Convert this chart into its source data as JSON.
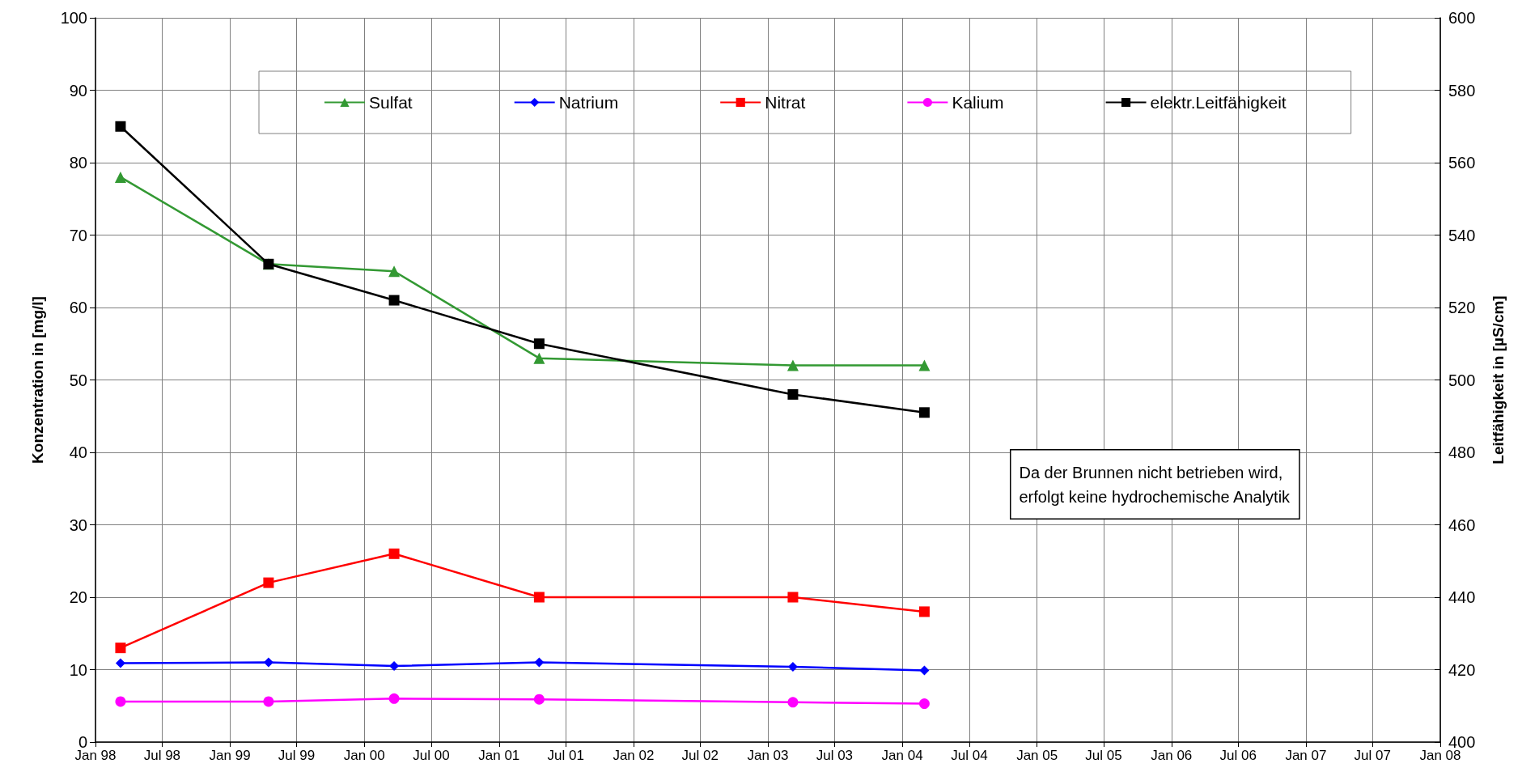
{
  "chart_data": {
    "type": "line",
    "ylabel": "Konzentration in [mg/l]",
    "y2label": "Leitfähigkeit in [µS/cm]",
    "x": [
      "1998-03-10",
      "1999-04-16",
      "2000-03-22",
      "2001-04-20",
      "2003-03-10",
      "2004-03-01"
    ],
    "series": [
      {
        "name": "Sulfat",
        "color": "#339933",
        "marker": "triangle",
        "values": [
          78,
          66,
          65,
          53,
          52,
          52
        ]
      },
      {
        "name": "Natrium",
        "color": "#0000ff",
        "marker": "diamond",
        "values": [
          10.9,
          11,
          10.5,
          11,
          10.4,
          9.9
        ]
      },
      {
        "name": "Nitrat",
        "color": "#ff0000",
        "marker": "square",
        "values": [
          13,
          22,
          26,
          20,
          20,
          18
        ]
      },
      {
        "name": "Kalium",
        "color": "#ff00ff",
        "marker": "circle",
        "values": [
          5.6,
          5.6,
          6,
          5.9,
          5.5,
          5.3
        ]
      },
      {
        "name": "elektr.Leitfähigkeit",
        "color": "#000000",
        "marker": "square",
        "axis": "y2",
        "values": [
          570,
          532,
          522,
          510,
          496,
          491
        ]
      }
    ],
    "xlim": [
      "1998-01",
      "2008-01"
    ],
    "xticks": [
      {
        "value": "1998-01",
        "label": "Jan 98"
      },
      {
        "value": "1998-07",
        "label": "Jul 98"
      },
      {
        "value": "1999-01",
        "label": "Jan 99"
      },
      {
        "value": "1999-07",
        "label": "Jul 99"
      },
      {
        "value": "2000-01",
        "label": "Jan 00"
      },
      {
        "value": "2000-07",
        "label": "Jul 00"
      },
      {
        "value": "2001-01",
        "label": "Jan 01"
      },
      {
        "value": "2001-07",
        "label": "Jul 01"
      },
      {
        "value": "2002-01",
        "label": "Jan 02"
      },
      {
        "value": "2002-07",
        "label": "Jul 02"
      },
      {
        "value": "2003-01",
        "label": "Jan 03"
      },
      {
        "value": "2003-07",
        "label": "Jul 03"
      },
      {
        "value": "2004-01",
        "label": "Jan 04"
      },
      {
        "value": "2004-07",
        "label": "Jul 04"
      },
      {
        "value": "2005-01",
        "label": "Jan 05"
      },
      {
        "value": "2005-07",
        "label": "Jul 05"
      },
      {
        "value": "2006-01",
        "label": "Jan 06"
      },
      {
        "value": "2006-07",
        "label": "Jul 06"
      },
      {
        "value": "2007-01",
        "label": "Jan 07"
      },
      {
        "value": "2007-07",
        "label": "Jul 07"
      },
      {
        "value": "2008-01",
        "label": "Jan 08"
      }
    ],
    "ylim": [
      0,
      100
    ],
    "yticks": [
      0,
      10,
      20,
      30,
      40,
      50,
      60,
      70,
      80,
      90,
      100
    ],
    "y2lim": [
      400,
      600
    ],
    "y2ticks": [
      400,
      420,
      440,
      460,
      480,
      500,
      520,
      540,
      560,
      580,
      600
    ],
    "grid": true,
    "legend": "top",
    "line_style": "solid",
    "annotations": [
      "Da der Brunnen nicht betrieben wird,\nerfolgt keine hydrochemische Analytik"
    ]
  }
}
